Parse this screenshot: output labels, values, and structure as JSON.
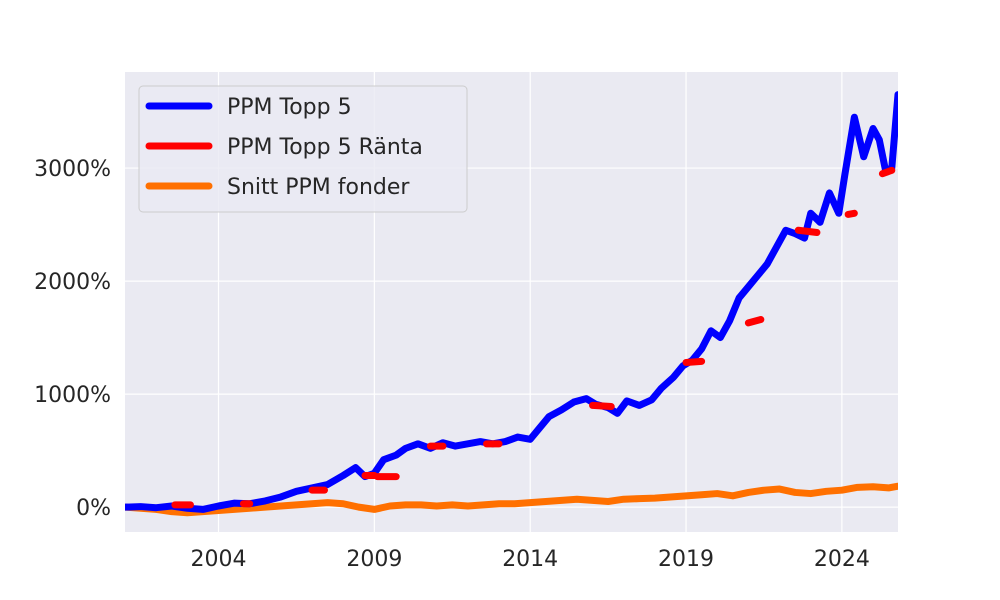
{
  "chart_data": {
    "type": "line",
    "title": "",
    "xlabel": "",
    "ylabel": "",
    "xlim": [
      2001.0,
      2025.8
    ],
    "ylim": [
      -220,
      3850
    ],
    "x_ticks": [
      2004,
      2009,
      2014,
      2019,
      2024
    ],
    "x_tick_labels": [
      "2004",
      "2009",
      "2014",
      "2019",
      "2024"
    ],
    "y_ticks": [
      0,
      1000,
      2000,
      3000
    ],
    "y_tick_labels": [
      "0%",
      "1000%",
      "2000%",
      "3000%"
    ],
    "grid": true,
    "legend_position": "upper-left",
    "colors": {
      "background": "#eaeaf2",
      "grid": "#ffffff",
      "text": "#262626",
      "legend_border": "#cccccc"
    },
    "series": [
      {
        "name": "PPM Topp 5",
        "color": "#0000ff",
        "points": [
          [
            2001.0,
            0
          ],
          [
            2001.5,
            5
          ],
          [
            2002.0,
            -5
          ],
          [
            2002.5,
            10
          ],
          [
            2003.0,
            -10
          ],
          [
            2003.5,
            -20
          ],
          [
            2004.0,
            10
          ],
          [
            2004.5,
            35
          ],
          [
            2005.0,
            30
          ],
          [
            2005.5,
            55
          ],
          [
            2006.0,
            90
          ],
          [
            2006.5,
            140
          ],
          [
            2007.0,
            170
          ],
          [
            2007.5,
            200
          ],
          [
            2008.0,
            280
          ],
          [
            2008.4,
            350
          ],
          [
            2008.7,
            270
          ],
          [
            2009.0,
            300
          ],
          [
            2009.3,
            420
          ],
          [
            2009.7,
            460
          ],
          [
            2010.0,
            520
          ],
          [
            2010.4,
            560
          ],
          [
            2010.8,
            520
          ],
          [
            2011.2,
            570
          ],
          [
            2011.6,
            540
          ],
          [
            2012.0,
            560
          ],
          [
            2012.4,
            580
          ],
          [
            2012.8,
            560
          ],
          [
            2013.2,
            580
          ],
          [
            2013.6,
            620
          ],
          [
            2014.0,
            600
          ],
          [
            2014.3,
            700
          ],
          [
            2014.6,
            800
          ],
          [
            2015.0,
            860
          ],
          [
            2015.4,
            930
          ],
          [
            2015.8,
            960
          ],
          [
            2016.1,
            910
          ],
          [
            2016.5,
            880
          ],
          [
            2016.8,
            830
          ],
          [
            2017.1,
            940
          ],
          [
            2017.5,
            900
          ],
          [
            2017.9,
            950
          ],
          [
            2018.2,
            1050
          ],
          [
            2018.6,
            1150
          ],
          [
            2018.9,
            1250
          ],
          [
            2019.2,
            1300
          ],
          [
            2019.5,
            1400
          ],
          [
            2019.8,
            1560
          ],
          [
            2020.1,
            1500
          ],
          [
            2020.4,
            1650
          ],
          [
            2020.7,
            1850
          ],
          [
            2021.0,
            1950
          ],
          [
            2021.3,
            2050
          ],
          [
            2021.6,
            2150
          ],
          [
            2021.9,
            2300
          ],
          [
            2022.2,
            2450
          ],
          [
            2022.5,
            2420
          ],
          [
            2022.8,
            2380
          ],
          [
            2023.0,
            2600
          ],
          [
            2023.3,
            2520
          ],
          [
            2023.6,
            2780
          ],
          [
            2023.9,
            2600
          ],
          [
            2024.1,
            2950
          ],
          [
            2024.4,
            3450
          ],
          [
            2024.7,
            3100
          ],
          [
            2025.0,
            3350
          ],
          [
            2025.2,
            3250
          ],
          [
            2025.4,
            2980
          ],
          [
            2025.6,
            3000
          ],
          [
            2025.8,
            3650
          ]
        ]
      },
      {
        "name": "PPM Topp 5 Ränta",
        "color": "#ff0000",
        "segments": [
          [
            [
              2002.6,
              20
            ],
            [
              2003.1,
              20
            ]
          ],
          [
            [
              2004.8,
              30
            ],
            [
              2005.0,
              30
            ]
          ],
          [
            [
              2007.0,
              150
            ],
            [
              2007.4,
              150
            ]
          ],
          [
            [
              2008.7,
              280
            ],
            [
              2009.0,
              280
            ]
          ],
          [
            [
              2009.1,
              270
            ],
            [
              2009.7,
              270
            ]
          ],
          [
            [
              2010.8,
              540
            ],
            [
              2011.2,
              540
            ]
          ],
          [
            [
              2012.6,
              560
            ],
            [
              2013.0,
              560
            ]
          ],
          [
            [
              2016.0,
              900
            ],
            [
              2016.6,
              890
            ]
          ],
          [
            [
              2019.0,
              1280
            ],
            [
              2019.5,
              1290
            ]
          ],
          [
            [
              2021.0,
              1630
            ],
            [
              2021.4,
              1660
            ]
          ],
          [
            [
              2022.6,
              2450
            ],
            [
              2023.2,
              2430
            ]
          ],
          [
            [
              2024.2,
              2590
            ],
            [
              2024.4,
              2600
            ]
          ],
          [
            [
              2025.3,
              2950
            ],
            [
              2025.6,
              2980
            ]
          ]
        ]
      },
      {
        "name": "Snitt PPM fonder",
        "color": "#ff7000",
        "points": [
          [
            2001.0,
            0
          ],
          [
            2001.5,
            -10
          ],
          [
            2002.0,
            -20
          ],
          [
            2002.5,
            -40
          ],
          [
            2003.0,
            -50
          ],
          [
            2003.5,
            -40
          ],
          [
            2004.0,
            -30
          ],
          [
            2004.5,
            -20
          ],
          [
            2005.0,
            -10
          ],
          [
            2005.5,
            0
          ],
          [
            2006.0,
            10
          ],
          [
            2006.5,
            20
          ],
          [
            2007.0,
            30
          ],
          [
            2007.5,
            40
          ],
          [
            2008.0,
            30
          ],
          [
            2008.5,
            0
          ],
          [
            2009.0,
            -20
          ],
          [
            2009.5,
            10
          ],
          [
            2010.0,
            20
          ],
          [
            2010.5,
            20
          ],
          [
            2011.0,
            10
          ],
          [
            2011.5,
            20
          ],
          [
            2012.0,
            10
          ],
          [
            2012.5,
            20
          ],
          [
            2013.0,
            30
          ],
          [
            2013.5,
            30
          ],
          [
            2014.0,
            40
          ],
          [
            2014.5,
            50
          ],
          [
            2015.0,
            60
          ],
          [
            2015.5,
            70
          ],
          [
            2016.0,
            60
          ],
          [
            2016.5,
            50
          ],
          [
            2017.0,
            70
          ],
          [
            2017.5,
            75
          ],
          [
            2018.0,
            80
          ],
          [
            2018.5,
            90
          ],
          [
            2019.0,
            100
          ],
          [
            2019.5,
            110
          ],
          [
            2020.0,
            120
          ],
          [
            2020.5,
            100
          ],
          [
            2021.0,
            130
          ],
          [
            2021.5,
            150
          ],
          [
            2022.0,
            160
          ],
          [
            2022.5,
            130
          ],
          [
            2023.0,
            120
          ],
          [
            2023.5,
            140
          ],
          [
            2024.0,
            150
          ],
          [
            2024.5,
            175
          ],
          [
            2025.0,
            180
          ],
          [
            2025.5,
            170
          ],
          [
            2025.8,
            185
          ]
        ]
      }
    ],
    "legend": [
      {
        "label": "PPM Topp 5",
        "color": "#0000ff"
      },
      {
        "label": "PPM Topp 5 Ränta",
        "color": "#ff0000"
      },
      {
        "label": "Snitt PPM fonder",
        "color": "#ff7000"
      }
    ]
  }
}
